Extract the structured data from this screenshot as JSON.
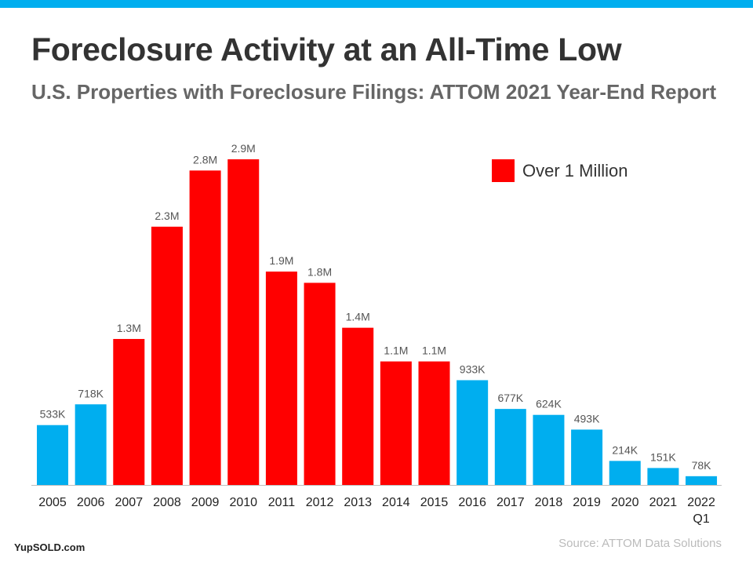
{
  "header": {
    "title": "Foreclosure Activity at an All-Time Low",
    "subtitle": "U.S. Properties with Foreclosure Filings: ATTOM 2021 Year-End Report"
  },
  "legend": {
    "label": "Over 1 Million",
    "color": "#ff0000"
  },
  "colors": {
    "accent": "#00aeef",
    "over_million": "#ff0000",
    "under_million": "#00aeef"
  },
  "footer": {
    "brand": "YupSOLD.com",
    "source": "Source: ATTOM Data Solutions"
  },
  "chart_data": {
    "type": "bar",
    "title": "Foreclosure Activity at an All-Time Low",
    "subtitle": "U.S. Properties with Foreclosure Filings: ATTOM 2021 Year-End Report",
    "xlabel": "",
    "ylabel": "",
    "categories": [
      "2005",
      "2006",
      "2007",
      "2008",
      "2009",
      "2010",
      "2011",
      "2012",
      "2013",
      "2014",
      "2015",
      "2016",
      "2017",
      "2018",
      "2019",
      "2020",
      "2021",
      "2022\nQ1"
    ],
    "values": [
      533000,
      718000,
      1300000,
      2300000,
      2800000,
      2900000,
      1900000,
      1800000,
      1400000,
      1100000,
      1100000,
      933000,
      677000,
      624000,
      493000,
      214000,
      151000,
      78000
    ],
    "data_labels": [
      "533K",
      "718K",
      "1.3M",
      "2.3M",
      "2.8M",
      "2.9M",
      "1.9M",
      "1.8M",
      "1.4M",
      "1.1M",
      "1.1M",
      "933K",
      "677K",
      "624K",
      "493K",
      "214K",
      "151K",
      "78K"
    ],
    "ylim": [
      0,
      2900000
    ],
    "grid": false,
    "legend_position": "top-right",
    "legend": [
      "Over 1 Million"
    ]
  }
}
